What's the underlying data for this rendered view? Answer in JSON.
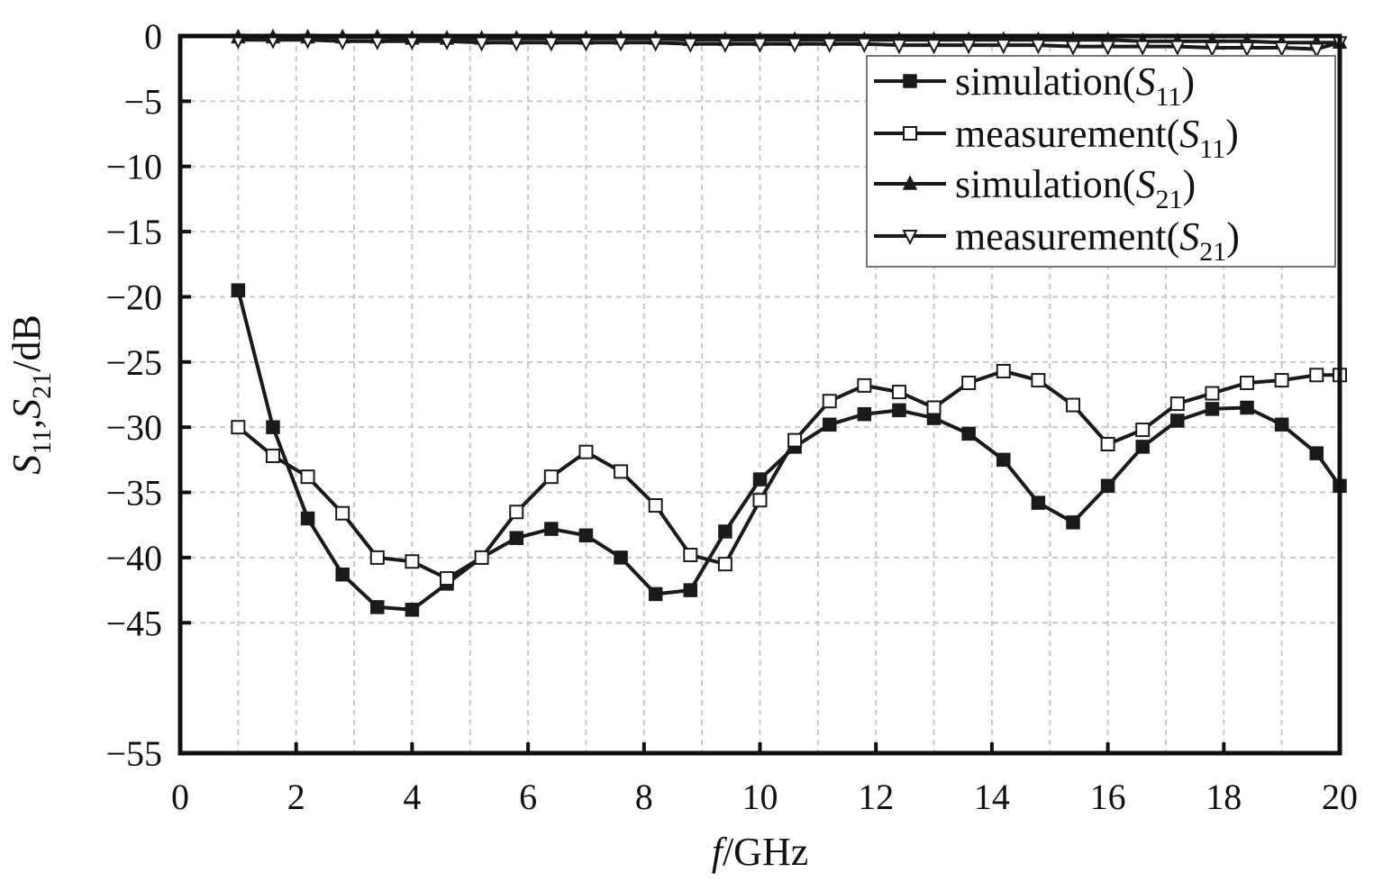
{
  "chart_data": {
    "type": "line",
    "xlabel": {
      "italic": "f",
      "rest": "/GHz"
    },
    "ylabel": {
      "s": "S",
      "sub1": "11",
      "comma": ",",
      "sub2": "21",
      "unit": "/dB"
    },
    "xlim": [
      0,
      20
    ],
    "ylim": [
      -55,
      0
    ],
    "x_ticks": [
      0,
      2,
      4,
      6,
      8,
      10,
      12,
      14,
      16,
      18,
      20
    ],
    "y_ticks": [
      0,
      -5,
      -10,
      -15,
      -20,
      -25,
      -30,
      -35,
      -40,
      -45,
      -55
    ],
    "x_tick_labels": [
      "0",
      "2",
      "4",
      "6",
      "8",
      "10",
      "12",
      "14",
      "16",
      "18",
      "20"
    ],
    "y_tick_labels": [
      "0",
      "−5",
      "−10",
      "−15",
      "−20",
      "−25",
      "−30",
      "−35",
      "−40",
      "−45",
      "−55"
    ],
    "grid": true,
    "legend_position": "top-right",
    "series": [
      {
        "name": "simulation(S11)",
        "legend_main": "simulation(",
        "legend_s": "S",
        "legend_sub": "11",
        "legend_close": ")",
        "marker": "square-filled",
        "color": "#1a1a1a",
        "x": [
          1,
          1.6,
          2.2,
          2.8,
          3.4,
          4,
          4.6,
          5.2,
          5.8,
          6.4,
          7,
          7.6,
          8.2,
          8.8,
          9.4,
          10,
          10.6,
          11.2,
          11.8,
          12.4,
          13,
          13.6,
          14.2,
          14.8,
          15.4,
          16,
          16.6,
          17.2,
          17.8,
          18.4,
          19,
          19.6,
          20
        ],
        "y": [
          -19.5,
          -30,
          -37,
          -41.3,
          -43.8,
          -44,
          -42,
          -40,
          -38.5,
          -37.8,
          -38.3,
          -40,
          -42.8,
          -42.5,
          -38,
          -34,
          -31.5,
          -29.8,
          -29,
          -28.7,
          -29.3,
          -30.5,
          -32.5,
          -35.8,
          -37.3,
          -34.5,
          -31.5,
          -29.5,
          -28.6,
          -28.5,
          -29.8,
          -32,
          -34.5
        ]
      },
      {
        "name": "measurement(S11)",
        "legend_main": "measurement(",
        "legend_s": "S",
        "legend_sub": "11",
        "legend_close": ")",
        "marker": "square-open",
        "color": "#1a1a1a",
        "x": [
          1,
          1.6,
          2.2,
          2.8,
          3.4,
          4,
          4.6,
          5.2,
          5.8,
          6.4,
          7,
          7.6,
          8.2,
          8.8,
          9.4,
          10,
          10.6,
          11.2,
          11.8,
          12.4,
          13,
          13.6,
          14.2,
          14.8,
          15.4,
          16,
          16.6,
          17.2,
          17.8,
          18.4,
          19,
          19.6,
          20
        ],
        "y": [
          -30,
          -32.2,
          -33.8,
          -36.6,
          -40,
          -40.3,
          -41.6,
          -40,
          -36.5,
          -33.8,
          -31.9,
          -33.4,
          -36,
          -39.8,
          -40.5,
          -35.6,
          -31,
          -28,
          -26.8,
          -27.3,
          -28.5,
          -26.6,
          -25.7,
          -26.4,
          -28.3,
          -31.3,
          -30.2,
          -28.2,
          -27.4,
          -26.6,
          -26.4,
          -26,
          -26
        ]
      },
      {
        "name": "simulation(S21)",
        "legend_main": "simulation(",
        "legend_s": "S",
        "legend_sub": "21",
        "legend_close": ")",
        "marker": "triangle-up-filled",
        "color": "#1a1a1a",
        "x": [
          1,
          1.6,
          2.2,
          2.8,
          3.4,
          4,
          4.6,
          5.2,
          5.8,
          6.4,
          7,
          7.6,
          8.2,
          8.8,
          9.4,
          10,
          10.6,
          11.2,
          11.8,
          12.4,
          13,
          13.6,
          14.2,
          14.8,
          15.4,
          16,
          16.6,
          17.2,
          17.8,
          18.4,
          19,
          19.6,
          20
        ],
        "y": [
          -0.1,
          -0.1,
          -0.1,
          -0.1,
          -0.1,
          -0.2,
          -0.2,
          -0.2,
          -0.2,
          -0.2,
          -0.2,
          -0.2,
          -0.2,
          -0.3,
          -0.3,
          -0.3,
          -0.3,
          -0.3,
          -0.3,
          -0.3,
          -0.3,
          -0.3,
          -0.3,
          -0.3,
          -0.3,
          -0.3,
          -0.4,
          -0.4,
          -0.4,
          -0.4,
          -0.5,
          -0.5,
          -0.5
        ]
      },
      {
        "name": "measurement(S21)",
        "legend_main": "measurement(",
        "legend_s": "S",
        "legend_sub": "21",
        "legend_close": ")",
        "marker": "triangle-down-open",
        "color": "#1a1a1a",
        "x": [
          1,
          1.6,
          2.2,
          2.8,
          3.4,
          4,
          4.6,
          5.2,
          5.8,
          6.4,
          7,
          7.6,
          8.2,
          8.8,
          9.4,
          10,
          10.6,
          11.2,
          11.8,
          12.4,
          13,
          13.6,
          14.2,
          14.8,
          15.4,
          16,
          16.6,
          17.2,
          17.8,
          18.4,
          19,
          19.6,
          20
        ],
        "y": [
          -0.3,
          -0.3,
          -0.3,
          -0.4,
          -0.4,
          -0.4,
          -0.4,
          -0.5,
          -0.5,
          -0.5,
          -0.5,
          -0.5,
          -0.5,
          -0.6,
          -0.6,
          -0.6,
          -0.6,
          -0.6,
          -0.6,
          -0.7,
          -0.7,
          -0.7,
          -0.7,
          -0.7,
          -0.8,
          -0.8,
          -0.8,
          -0.8,
          -0.9,
          -0.9,
          -0.9,
          -1,
          -0.5
        ]
      }
    ]
  }
}
